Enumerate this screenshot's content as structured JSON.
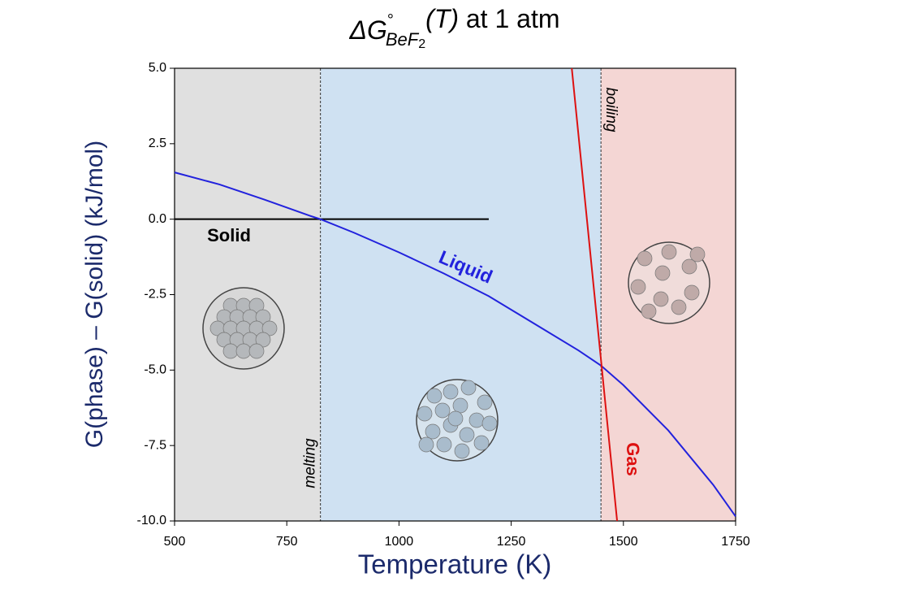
{
  "chart_data": {
    "type": "line",
    "title_parts": [
      "ΔG",
      "°",
      "BeF",
      "2",
      "(T)",
      " at 1 atm"
    ],
    "xlabel": "Temperature (K)",
    "ylabel": "G(phase) – G(solid) (kJ/mol)",
    "xlim": [
      500,
      1750
    ],
    "ylim": [
      -10.0,
      5.0
    ],
    "xticks": [
      500,
      750,
      1000,
      1250,
      1500,
      1750
    ],
    "yticks": [
      {
        "value": -10,
        "label": "-10.0"
      },
      {
        "value": -7.5,
        "label": "-7.5"
      },
      {
        "value": -5,
        "label": "-5.0"
      },
      {
        "value": -2.5,
        "label": "-2.5"
      },
      {
        "value": 0,
        "label": "0.0"
      },
      {
        "value": 2.5,
        "label": "2.5"
      },
      {
        "value": 5,
        "label": "5.0"
      }
    ],
    "regions": [
      {
        "from": 500,
        "to": 825,
        "color": "#e0e0e0"
      },
      {
        "from": 825,
        "to": 1450,
        "color": "#cfe1f2"
      },
      {
        "from": 1450,
        "to": 1750,
        "color": "#f4d6d4"
      }
    ],
    "annotations": [
      {
        "text": "melting",
        "x": 825
      },
      {
        "text": "boiling",
        "x": 1450
      }
    ],
    "series": [
      {
        "name": "Solid",
        "color": "#000000",
        "x": [
          500,
          1200
        ],
        "values": [
          0,
          0
        ]
      },
      {
        "name": "Liquid",
        "color": "#2222dd",
        "x": [
          500,
          600,
          700,
          800,
          825,
          900,
          1000,
          1100,
          1200,
          1300,
          1400,
          1450,
          1500,
          1600,
          1700,
          1750
        ],
        "values": [
          1.55,
          1.15,
          0.65,
          0.12,
          0,
          -0.45,
          -1.1,
          -1.8,
          -2.55,
          -3.45,
          -4.35,
          -4.85,
          -5.5,
          -7.0,
          -8.8,
          -9.85
        ]
      },
      {
        "name": "Gas",
        "color": "#dd1111",
        "x": [
          1385,
          1486
        ],
        "values": [
          5.0,
          -10.0
        ]
      }
    ]
  }
}
